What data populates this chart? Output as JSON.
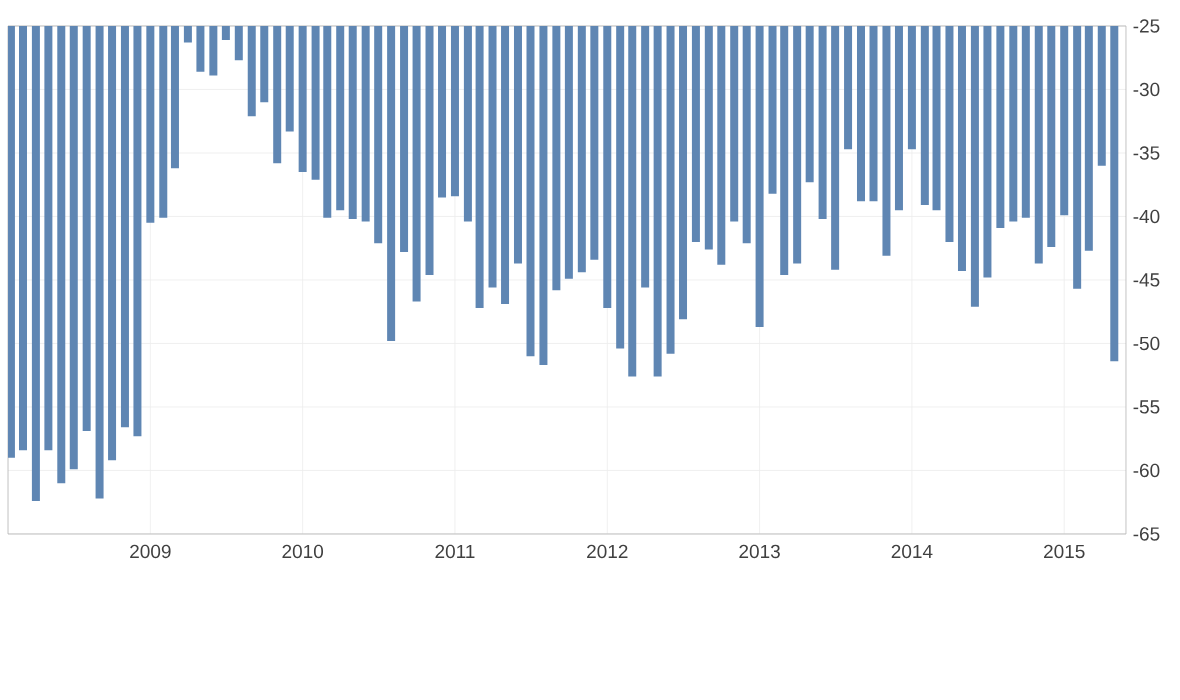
{
  "chart_data": {
    "type": "bar",
    "color": "#5f86b3",
    "x": [
      "2008-02",
      "2008-03",
      "2008-04",
      "2008-05",
      "2008-06",
      "2008-07",
      "2008-08",
      "2008-09",
      "2008-10",
      "2008-11",
      "2008-12",
      "2009-01",
      "2009-02",
      "2009-03",
      "2009-04",
      "2009-05",
      "2009-06",
      "2009-07",
      "2009-08",
      "2009-09",
      "2009-10",
      "2009-11",
      "2009-12",
      "2010-01",
      "2010-02",
      "2010-03",
      "2010-04",
      "2010-05",
      "2010-06",
      "2010-07",
      "2010-08",
      "2010-09",
      "2010-10",
      "2010-11",
      "2010-12",
      "2011-01",
      "2011-02",
      "2011-03",
      "2011-04",
      "2011-05",
      "2011-06",
      "2011-07",
      "2011-08",
      "2011-09",
      "2011-10",
      "2011-11",
      "2011-12",
      "2012-01",
      "2012-02",
      "2012-03",
      "2012-04",
      "2012-05",
      "2012-06",
      "2012-07",
      "2012-08",
      "2012-09",
      "2012-10",
      "2012-11",
      "2012-12",
      "2013-01",
      "2013-02",
      "2013-03",
      "2013-04",
      "2013-05",
      "2013-06",
      "2013-07",
      "2013-08",
      "2013-09",
      "2013-10",
      "2013-11",
      "2013-12",
      "2014-01",
      "2014-02",
      "2014-03",
      "2014-04",
      "2014-05",
      "2014-06",
      "2014-07",
      "2014-08",
      "2014-09",
      "2014-10",
      "2014-11",
      "2014-12",
      "2015-01",
      "2015-02",
      "2015-03",
      "2015-04",
      "2015-05"
    ],
    "values": [
      -59.0,
      -58.4,
      -62.4,
      -58.4,
      -61.0,
      -59.9,
      -56.9,
      -62.2,
      -59.2,
      -56.6,
      -57.3,
      -40.5,
      -40.1,
      -36.2,
      -26.3,
      -28.6,
      -28.9,
      -26.1,
      -27.7,
      -32.1,
      -31.0,
      -35.8,
      -33.3,
      -36.5,
      -37.1,
      -40.1,
      -39.5,
      -40.2,
      -40.4,
      -42.1,
      -49.8,
      -42.8,
      -46.7,
      -44.6,
      -38.5,
      -38.4,
      -40.4,
      -47.2,
      -45.6,
      -46.9,
      -43.7,
      -51.0,
      -51.7,
      -45.8,
      -44.9,
      -44.4,
      -43.4,
      -47.2,
      -50.4,
      -52.6,
      -45.6,
      -52.6,
      -50.8,
      -48.1,
      -42.0,
      -42.6,
      -43.8,
      -40.4,
      -42.1,
      -48.7,
      -38.2,
      -44.6,
      -43.7,
      -37.3,
      -40.2,
      -44.2,
      -34.7,
      -38.8,
      -38.8,
      -43.1,
      -39.5,
      -34.7,
      -39.1,
      -39.5,
      -42.0,
      -44.3,
      -47.1,
      -44.8,
      -40.9,
      -40.4,
      -40.1,
      -43.7,
      -42.4,
      -39.9,
      -45.7,
      -42.7,
      -36.0,
      -51.4
    ],
    "xlim": [
      "2008-01-25",
      "2015-05-29"
    ],
    "xticks": [
      {
        "value": "2009",
        "label": "2009"
      },
      {
        "value": "2010",
        "label": "2010"
      },
      {
        "value": "2011",
        "label": "2011"
      },
      {
        "value": "2012",
        "label": "2012"
      },
      {
        "value": "2013",
        "label": "2013"
      },
      {
        "value": "2014",
        "label": "2014"
      },
      {
        "value": "2015",
        "label": "2015"
      }
    ],
    "ylim": [
      -65,
      -25
    ],
    "yticks": [
      -25,
      -30,
      -35,
      -40,
      -45,
      -50,
      -55,
      -60,
      -65
    ],
    "grid": true
  }
}
